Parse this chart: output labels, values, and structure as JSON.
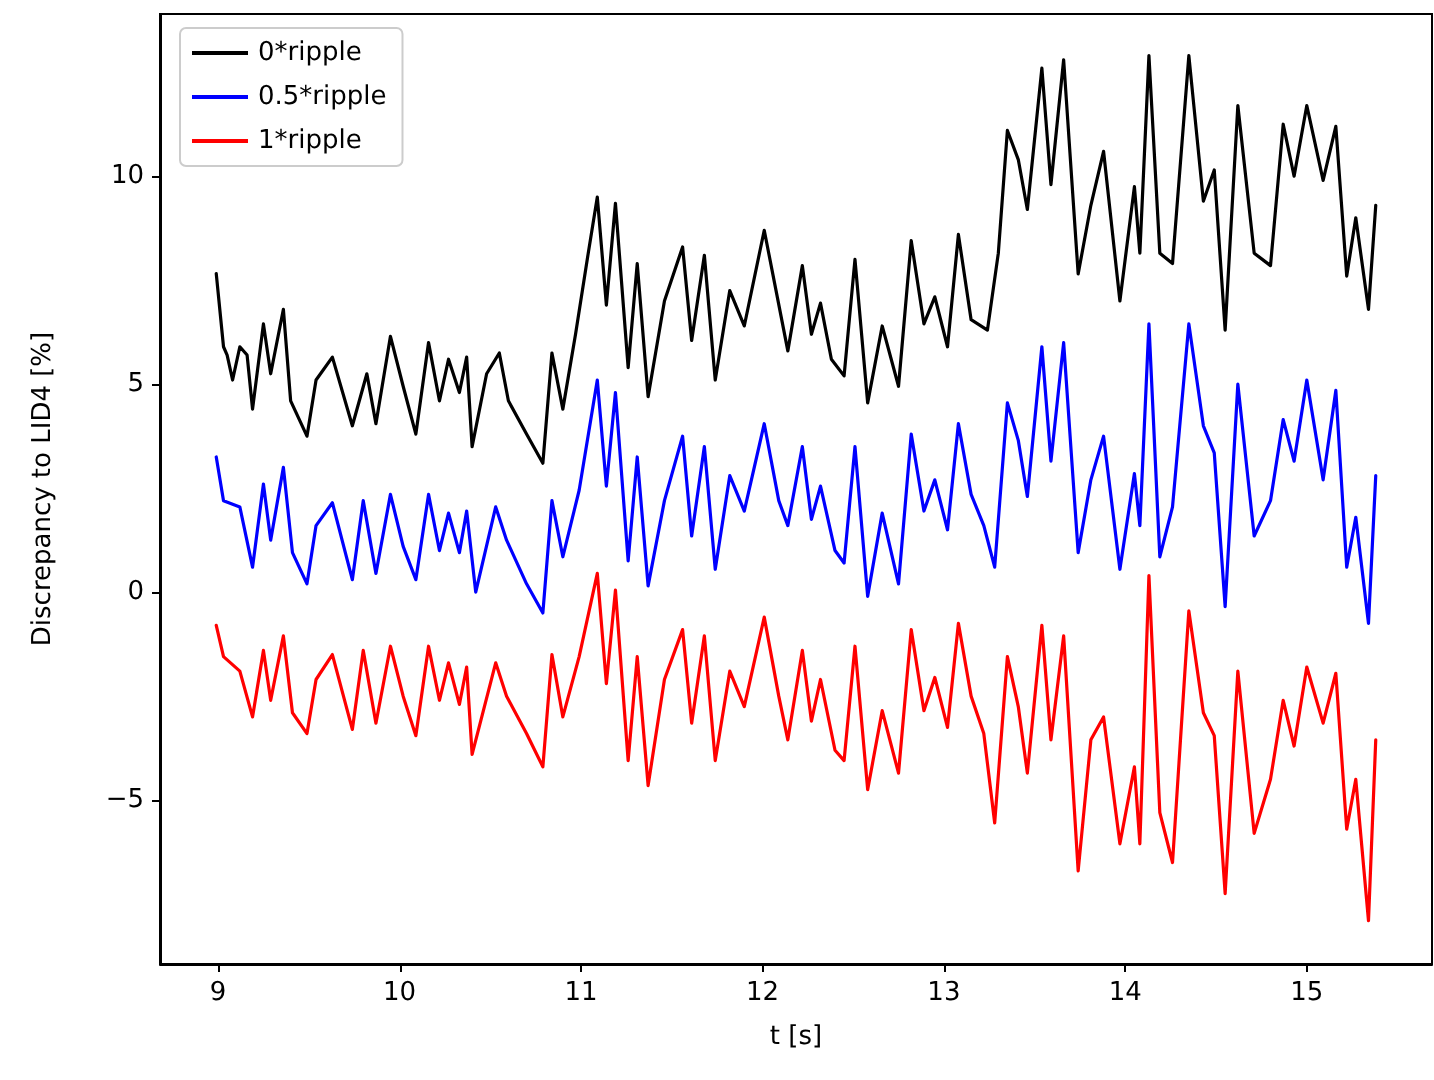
{
  "chart_data": {
    "type": "line",
    "xlabel": "t [s]",
    "ylabel": "Discrepancy to LID4 [%]",
    "xlim": [
      8.68,
      15.69
    ],
    "xticks": [
      9,
      10,
      11,
      12,
      13,
      14,
      15
    ],
    "ylim": [
      -8.94,
      13.9
    ],
    "yticks": [
      {
        "value": -5,
        "label": "−5"
      },
      0,
      5,
      10
    ],
    "grid": false,
    "legend": "top left",
    "marker": "none",
    "line_style": "solid",
    "series": [
      {
        "name": "0*ripple",
        "color": "#000000",
        "x": [
          8.99,
          9.03,
          9.05,
          9.08,
          9.12,
          9.16,
          9.19,
          9.25,
          9.29,
          9.36,
          9.4,
          9.49,
          9.54,
          9.63,
          9.74,
          9.82,
          9.87,
          9.95,
          10.02,
          10.09,
          10.16,
          10.22,
          10.27,
          10.33,
          10.37,
          10.4,
          10.48,
          10.55,
          10.6,
          10.7,
          10.79,
          10.84,
          10.9,
          10.97,
          11.04,
          11.09,
          11.14,
          11.19,
          11.26,
          11.31,
          11.37,
          11.46,
          11.56,
          11.61,
          11.68,
          11.74,
          11.82,
          11.9,
          12.01,
          12.14,
          12.22,
          12.27,
          12.32,
          12.38,
          12.45,
          12.51,
          12.58,
          12.66,
          12.75,
          12.82,
          12.89,
          12.95,
          13.02,
          13.08,
          13.15,
          13.24,
          13.3,
          13.35,
          13.41,
          13.46,
          13.54,
          13.59,
          13.66,
          13.74,
          13.81,
          13.88,
          13.97,
          14.05,
          14.08,
          14.13,
          14.19,
          14.26,
          14.35,
          14.43,
          14.49,
          14.55,
          14.62,
          14.71,
          14.8,
          14.87,
          14.93,
          15.0,
          15.09,
          15.16,
          15.22,
          15.27,
          15.34,
          15.38
        ],
        "values": [
          7.66,
          5.9,
          5.7,
          5.1,
          5.9,
          5.7,
          4.4,
          6.45,
          5.25,
          6.8,
          4.6,
          3.75,
          5.1,
          5.65,
          4.0,
          5.25,
          4.05,
          6.15,
          4.95,
          3.8,
          6.0,
          4.6,
          5.6,
          4.8,
          5.65,
          3.5,
          5.25,
          5.75,
          4.6,
          3.8,
          3.1,
          5.75,
          4.4,
          6.2,
          8.15,
          9.5,
          6.9,
          9.35,
          5.4,
          7.9,
          4.7,
          7.0,
          8.3,
          6.05,
          8.1,
          5.1,
          7.25,
          6.4,
          8.7,
          5.8,
          7.85,
          6.2,
          6.95,
          5.6,
          5.2,
          8.0,
          4.55,
          6.4,
          4.95,
          8.45,
          6.45,
          7.1,
          5.9,
          8.6,
          6.55,
          6.3,
          8.15,
          11.1,
          10.4,
          9.2,
          12.6,
          9.8,
          12.8,
          7.65,
          9.3,
          10.6,
          7.0,
          9.75,
          8.15,
          12.9,
          8.15,
          7.9,
          12.9,
          9.4,
          10.15,
          6.3,
          11.7,
          8.15,
          7.85,
          11.25,
          10.0,
          11.7,
          9.9,
          11.2,
          7.6,
          9.0,
          6.8,
          9.3
        ]
      },
      {
        "name": "0.5*ripple",
        "color": "#0000ff",
        "x": [
          8.99,
          9.03,
          9.12,
          9.19,
          9.25,
          9.29,
          9.36,
          9.41,
          9.49,
          9.54,
          9.63,
          9.74,
          9.8,
          9.87,
          9.95,
          10.02,
          10.09,
          10.16,
          10.22,
          10.27,
          10.33,
          10.37,
          10.42,
          10.53,
          10.59,
          10.7,
          10.79,
          10.84,
          10.9,
          10.99,
          11.09,
          11.14,
          11.19,
          11.26,
          11.31,
          11.37,
          11.46,
          11.56,
          11.61,
          11.68,
          11.74,
          11.82,
          11.9,
          12.01,
          12.09,
          12.14,
          12.22,
          12.27,
          12.32,
          12.4,
          12.45,
          12.51,
          12.58,
          12.66,
          12.75,
          12.82,
          12.89,
          12.95,
          13.02,
          13.08,
          13.15,
          13.22,
          13.28,
          13.35,
          13.41,
          13.46,
          13.54,
          13.59,
          13.66,
          13.74,
          13.81,
          13.88,
          13.97,
          14.05,
          14.08,
          14.13,
          14.19,
          14.26,
          14.35,
          14.43,
          14.49,
          14.55,
          14.62,
          14.71,
          14.8,
          14.87,
          14.93,
          15.0,
          15.09,
          15.16,
          15.22,
          15.27,
          15.34,
          15.38
        ],
        "values": [
          3.25,
          2.2,
          2.05,
          0.6,
          2.6,
          1.25,
          3.0,
          0.95,
          0.2,
          1.6,
          2.15,
          0.3,
          2.2,
          0.45,
          2.35,
          1.1,
          0.3,
          2.35,
          1.0,
          1.9,
          0.95,
          1.95,
          0.0,
          2.05,
          1.25,
          0.2,
          -0.5,
          2.2,
          0.85,
          2.45,
          5.1,
          2.55,
          4.8,
          0.75,
          3.25,
          0.15,
          2.2,
          3.75,
          1.35,
          3.5,
          0.55,
          2.8,
          1.95,
          4.05,
          2.2,
          1.6,
          3.5,
          1.75,
          2.55,
          1.0,
          0.7,
          3.5,
          -0.1,
          1.9,
          0.2,
          3.8,
          1.95,
          2.7,
          1.5,
          4.05,
          2.35,
          1.6,
          0.6,
          4.55,
          3.65,
          2.3,
          5.9,
          3.15,
          6.0,
          0.95,
          2.7,
          3.75,
          0.55,
          2.85,
          1.6,
          6.45,
          0.85,
          2.05,
          6.45,
          4.0,
          3.35,
          -0.35,
          5.0,
          1.35,
          2.2,
          4.15,
          3.15,
          5.1,
          2.7,
          4.85,
          0.6,
          1.8,
          -0.75,
          2.8
        ]
      },
      {
        "name": "1*ripple",
        "color": "#ff0000",
        "x": [
          8.99,
          9.03,
          9.12,
          9.19,
          9.25,
          9.29,
          9.36,
          9.41,
          9.49,
          9.54,
          9.63,
          9.74,
          9.8,
          9.87,
          9.95,
          10.02,
          10.09,
          10.16,
          10.22,
          10.27,
          10.33,
          10.37,
          10.4,
          10.53,
          10.59,
          10.7,
          10.79,
          10.84,
          10.9,
          10.99,
          11.09,
          11.14,
          11.19,
          11.26,
          11.31,
          11.37,
          11.46,
          11.56,
          11.61,
          11.68,
          11.74,
          11.82,
          11.9,
          12.01,
          12.09,
          12.14,
          12.22,
          12.27,
          12.32,
          12.4,
          12.45,
          12.51,
          12.58,
          12.66,
          12.75,
          12.82,
          12.89,
          12.95,
          13.02,
          13.08,
          13.15,
          13.22,
          13.28,
          13.35,
          13.41,
          13.46,
          13.54,
          13.59,
          13.66,
          13.74,
          13.81,
          13.88,
          13.97,
          14.05,
          14.08,
          14.13,
          14.19,
          14.26,
          14.35,
          14.43,
          14.49,
          14.55,
          14.62,
          14.71,
          14.8,
          14.87,
          14.93,
          15.0,
          15.09,
          15.16,
          15.22,
          15.27,
          15.34,
          15.38
        ],
        "values": [
          -0.8,
          -1.55,
          -1.9,
          -3.0,
          -1.4,
          -2.6,
          -1.05,
          -2.9,
          -3.4,
          -2.1,
          -1.5,
          -3.3,
          -1.4,
          -3.15,
          -1.3,
          -2.5,
          -3.45,
          -1.3,
          -2.6,
          -1.7,
          -2.7,
          -1.8,
          -3.9,
          -1.7,
          -2.5,
          -3.4,
          -4.2,
          -1.5,
          -3.0,
          -1.55,
          0.45,
          -2.2,
          0.05,
          -4.05,
          -1.55,
          -4.65,
          -2.1,
          -0.9,
          -3.15,
          -1.05,
          -4.05,
          -1.9,
          -2.75,
          -0.6,
          -2.5,
          -3.55,
          -1.4,
          -3.1,
          -2.1,
          -3.8,
          -4.05,
          -1.3,
          -4.75,
          -2.85,
          -4.35,
          -0.9,
          -2.85,
          -2.05,
          -3.25,
          -0.75,
          -2.5,
          -3.4,
          -5.55,
          -1.55,
          -2.75,
          -4.35,
          -0.8,
          -3.55,
          -1.05,
          -6.7,
          -3.55,
          -3.0,
          -6.05,
          -4.2,
          -6.05,
          0.4,
          -5.3,
          -6.5,
          -0.45,
          -2.9,
          -3.45,
          -7.25,
          -1.9,
          -5.8,
          -4.5,
          -2.6,
          -3.7,
          -1.8,
          -3.15,
          -1.95,
          -5.7,
          -4.5,
          -7.9,
          -3.55
        ]
      }
    ]
  }
}
